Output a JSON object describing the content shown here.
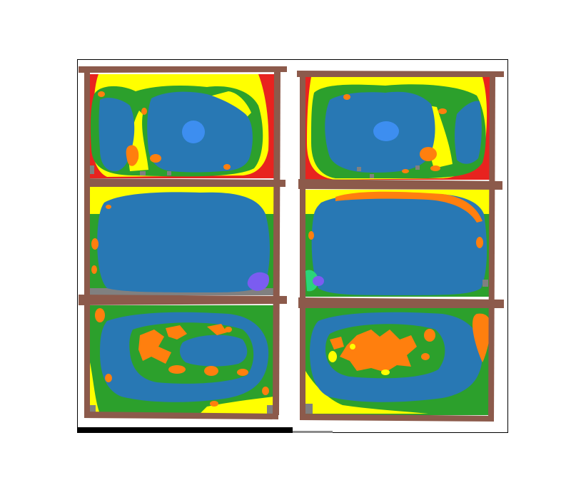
{
  "figure": {
    "description_colors": {
      "wall": "#8c5a4b",
      "floor": "#2878b4",
      "border_green": "#2ca02c",
      "yellow": "#ffff00",
      "orange": "#ff7f0e",
      "red": "#e8231f",
      "light_blue": "#3d8ef0",
      "purple": "#7b5cf0",
      "teal": "#2bd47a",
      "grey": "#808080"
    }
  }
}
